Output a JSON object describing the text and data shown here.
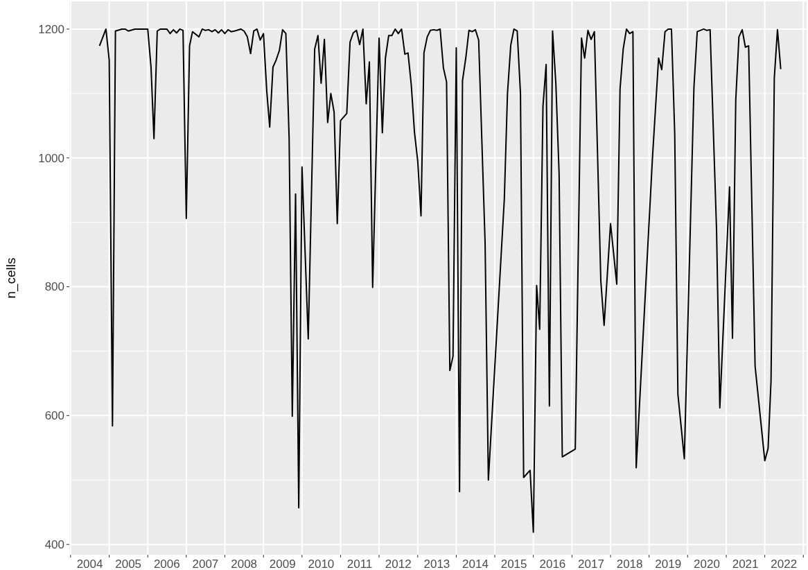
{
  "chart_data": {
    "type": "line",
    "ylabel": "n_cells",
    "grid": true,
    "line_style": "solid",
    "marker": "none",
    "xlim": [
      "2003-12-20",
      "2023-02-01"
    ],
    "ylim": [
      384,
      1243
    ],
    "xticks": [
      {
        "value": "2004-07-01",
        "label": "2004"
      },
      {
        "value": "2005-07-01",
        "label": "2005"
      },
      {
        "value": "2006-07-01",
        "label": "2006"
      },
      {
        "value": "2007-07-01",
        "label": "2007"
      },
      {
        "value": "2008-07-01",
        "label": "2008"
      },
      {
        "value": "2009-07-01",
        "label": "2009"
      },
      {
        "value": "2010-07-01",
        "label": "2010"
      },
      {
        "value": "2011-07-01",
        "label": "2011"
      },
      {
        "value": "2012-07-01",
        "label": "2012"
      },
      {
        "value": "2013-07-01",
        "label": "2013"
      },
      {
        "value": "2014-07-01",
        "label": "2014"
      },
      {
        "value": "2015-07-01",
        "label": "2015"
      },
      {
        "value": "2016-07-01",
        "label": "2016"
      },
      {
        "value": "2017-07-01",
        "label": "2017"
      },
      {
        "value": "2018-07-01",
        "label": "2018"
      },
      {
        "value": "2019-07-01",
        "label": "2019"
      },
      {
        "value": "2020-07-01",
        "label": "2020"
      },
      {
        "value": "2021-07-01",
        "label": "2021"
      },
      {
        "value": "2022-07-01",
        "label": "2022"
      },
      {
        "value": "2004-01-01",
        "label": null
      },
      {
        "value": "2005-01-01",
        "label": null
      },
      {
        "value": "2006-01-01",
        "label": null
      },
      {
        "value": "2007-01-01",
        "label": null
      },
      {
        "value": "2008-01-01",
        "label": null
      },
      {
        "value": "2009-01-01",
        "label": null
      },
      {
        "value": "2010-01-01",
        "label": null
      },
      {
        "value": "2011-01-01",
        "label": null
      },
      {
        "value": "2012-01-01",
        "label": null
      },
      {
        "value": "2013-01-01",
        "label": null
      },
      {
        "value": "2014-01-01",
        "label": null
      },
      {
        "value": "2015-01-01",
        "label": null
      },
      {
        "value": "2016-01-01",
        "label": null
      },
      {
        "value": "2017-01-01",
        "label": null
      },
      {
        "value": "2018-01-01",
        "label": null
      },
      {
        "value": "2019-01-01",
        "label": null
      },
      {
        "value": "2020-01-01",
        "label": null
      },
      {
        "value": "2021-01-01",
        "label": null
      },
      {
        "value": "2022-01-01",
        "label": null
      },
      {
        "value": "2023-01-01",
        "label": null
      }
    ],
    "yticks": [
      400,
      {
        "value": 500,
        "label": null
      },
      600,
      {
        "value": 700,
        "label": null
      },
      800,
      {
        "value": 900,
        "label": null
      },
      1000,
      {
        "value": 1100,
        "label": null
      },
      1200
    ],
    "x": [
      "2004-10",
      "2004-12",
      "2005-01",
      "2005-02",
      "2005-03",
      "2005-05",
      "2005-06",
      "2005-07",
      "2005-09",
      "2006-01",
      "2006-02",
      "2006-03",
      "2006-04",
      "2006-05",
      "2006-07",
      "2006-08",
      "2006-09",
      "2006-10",
      "2006-11",
      "2006-12",
      "2007-01",
      "2007-02",
      "2007-03",
      "2007-05",
      "2007-06",
      "2007-07",
      "2007-08",
      "2007-09",
      "2007-10",
      "2007-11",
      "2007-12",
      "2008-01",
      "2008-02",
      "2008-03",
      "2008-04",
      "2008-06",
      "2008-07",
      "2008-08",
      "2008-09",
      "2008-10",
      "2008-11",
      "2008-12",
      "2009-01",
      "2009-02",
      "2009-03",
      "2009-04",
      "2009-05",
      "2009-06",
      "2009-07",
      "2009-08",
      "2009-09",
      "2009-10",
      "2009-11",
      "2009-12",
      "2010-01",
      "2010-03",
      "2010-05",
      "2010-06",
      "2010-07",
      "2010-08",
      "2010-09",
      "2010-10",
      "2010-11",
      "2010-12",
      "2011-01",
      "2011-03",
      "2011-04",
      "2011-05",
      "2011-06",
      "2011-07",
      "2011-08",
      "2011-09",
      "2011-10",
      "2011-11",
      "2012-01",
      "2012-02",
      "2012-03",
      "2012-04",
      "2012-05",
      "2012-06",
      "2012-07",
      "2012-08",
      "2012-09",
      "2012-10",
      "2012-11",
      "2012-12",
      "2013-01",
      "2013-02",
      "2013-03",
      "2013-04",
      "2013-05",
      "2013-06",
      "2013-07",
      "2013-08",
      "2013-09",
      "2013-10",
      "2013-11",
      "2013-12",
      "2014-01",
      "2014-02",
      "2014-03",
      "2014-04",
      "2014-05",
      "2014-06",
      "2014-07",
      "2014-08",
      "2014-10",
      "2014-11",
      "2015-04",
      "2015-05",
      "2015-06",
      "2015-07",
      "2015-08",
      "2015-09",
      "2015-10",
      "2015-12",
      "2016-01",
      "2016-02",
      "2016-03",
      "2016-04",
      "2016-05",
      "2016-06",
      "2016-07",
      "2016-08",
      "2016-09",
      "2016-10",
      "2017-02",
      "2017-04",
      "2017-05",
      "2017-06",
      "2017-07",
      "2017-08",
      "2017-10",
      "2017-11",
      "2018-01",
      "2018-03",
      "2018-04",
      "2018-05",
      "2018-06",
      "2018-07",
      "2018-08",
      "2018-09",
      "2019-02",
      "2019-04",
      "2019-05",
      "2019-06",
      "2019-07",
      "2019-08",
      "2019-09",
      "2019-10",
      "2019-12",
      "2020-03",
      "2020-04",
      "2020-06",
      "2020-07",
      "2020-08",
      "2020-10",
      "2020-11",
      "2021-02",
      "2021-03",
      "2021-04",
      "2021-05",
      "2021-06",
      "2021-07",
      "2021-08",
      "2021-10",
      "2022-01",
      "2022-02",
      "2022-03",
      "2022-04",
      "2022-05",
      "2022-06"
    ],
    "series": [
      {
        "color": "#000000",
        "values": [
          1174,
          1200,
          1152,
          584,
          1197,
          1200,
          1200,
          1197,
          1200,
          1200,
          1141,
          1030,
          1197,
          1200,
          1200,
          1193,
          1199,
          1194,
          1200,
          1198,
          906,
          1174,
          1196,
          1188,
          1200,
          1198,
          1199,
          1196,
          1199,
          1194,
          1199,
          1193,
          1199,
          1196,
          1197,
          1200,
          1197,
          1188,
          1162,
          1197,
          1200,
          1183,
          1193,
          1104,
          1048,
          1141,
          1152,
          1167,
          1199,
          1193,
          1031,
          599,
          944,
          457,
          986,
          719,
          1169,
          1190,
          1116,
          1184,
          1055,
          1100,
          1071,
          898,
          1058,
          1069,
          1180,
          1194,
          1198,
          1176,
          1200,
          1084,
          1149,
          799,
          1186,
          1039,
          1155,
          1190,
          1190,
          1200,
          1193,
          1200,
          1161,
          1163,
          1113,
          1040,
          995,
          910,
          1163,
          1188,
          1198,
          1199,
          1198,
          1200,
          1140,
          1118,
          670,
          692,
          1171,
          482,
          1120,
          1155,
          1198,
          1196,
          1199,
          1183,
          868,
          500,
          936,
          1100,
          1175,
          1200,
          1197,
          1100,
          504,
          515,
          419,
          802,
          734,
          1080,
          1145,
          615,
          1197,
          1116,
          975,
          536,
          548,
          1186,
          1155,
          1198,
          1184,
          1196,
          809,
          740,
          898,
          804,
          1107,
          1169,
          1200,
          1193,
          1196,
          519,
          997,
          1155,
          1137,
          1196,
          1200,
          1200,
          1037,
          633,
          533,
          1110,
          1196,
          1200,
          1198,
          1199,
          888,
          612,
          955,
          720,
          1090,
          1188,
          1199,
          1172,
          1174,
          677,
          530,
          549,
          654,
          1124,
          1199,
          1138
        ]
      }
    ]
  }
}
